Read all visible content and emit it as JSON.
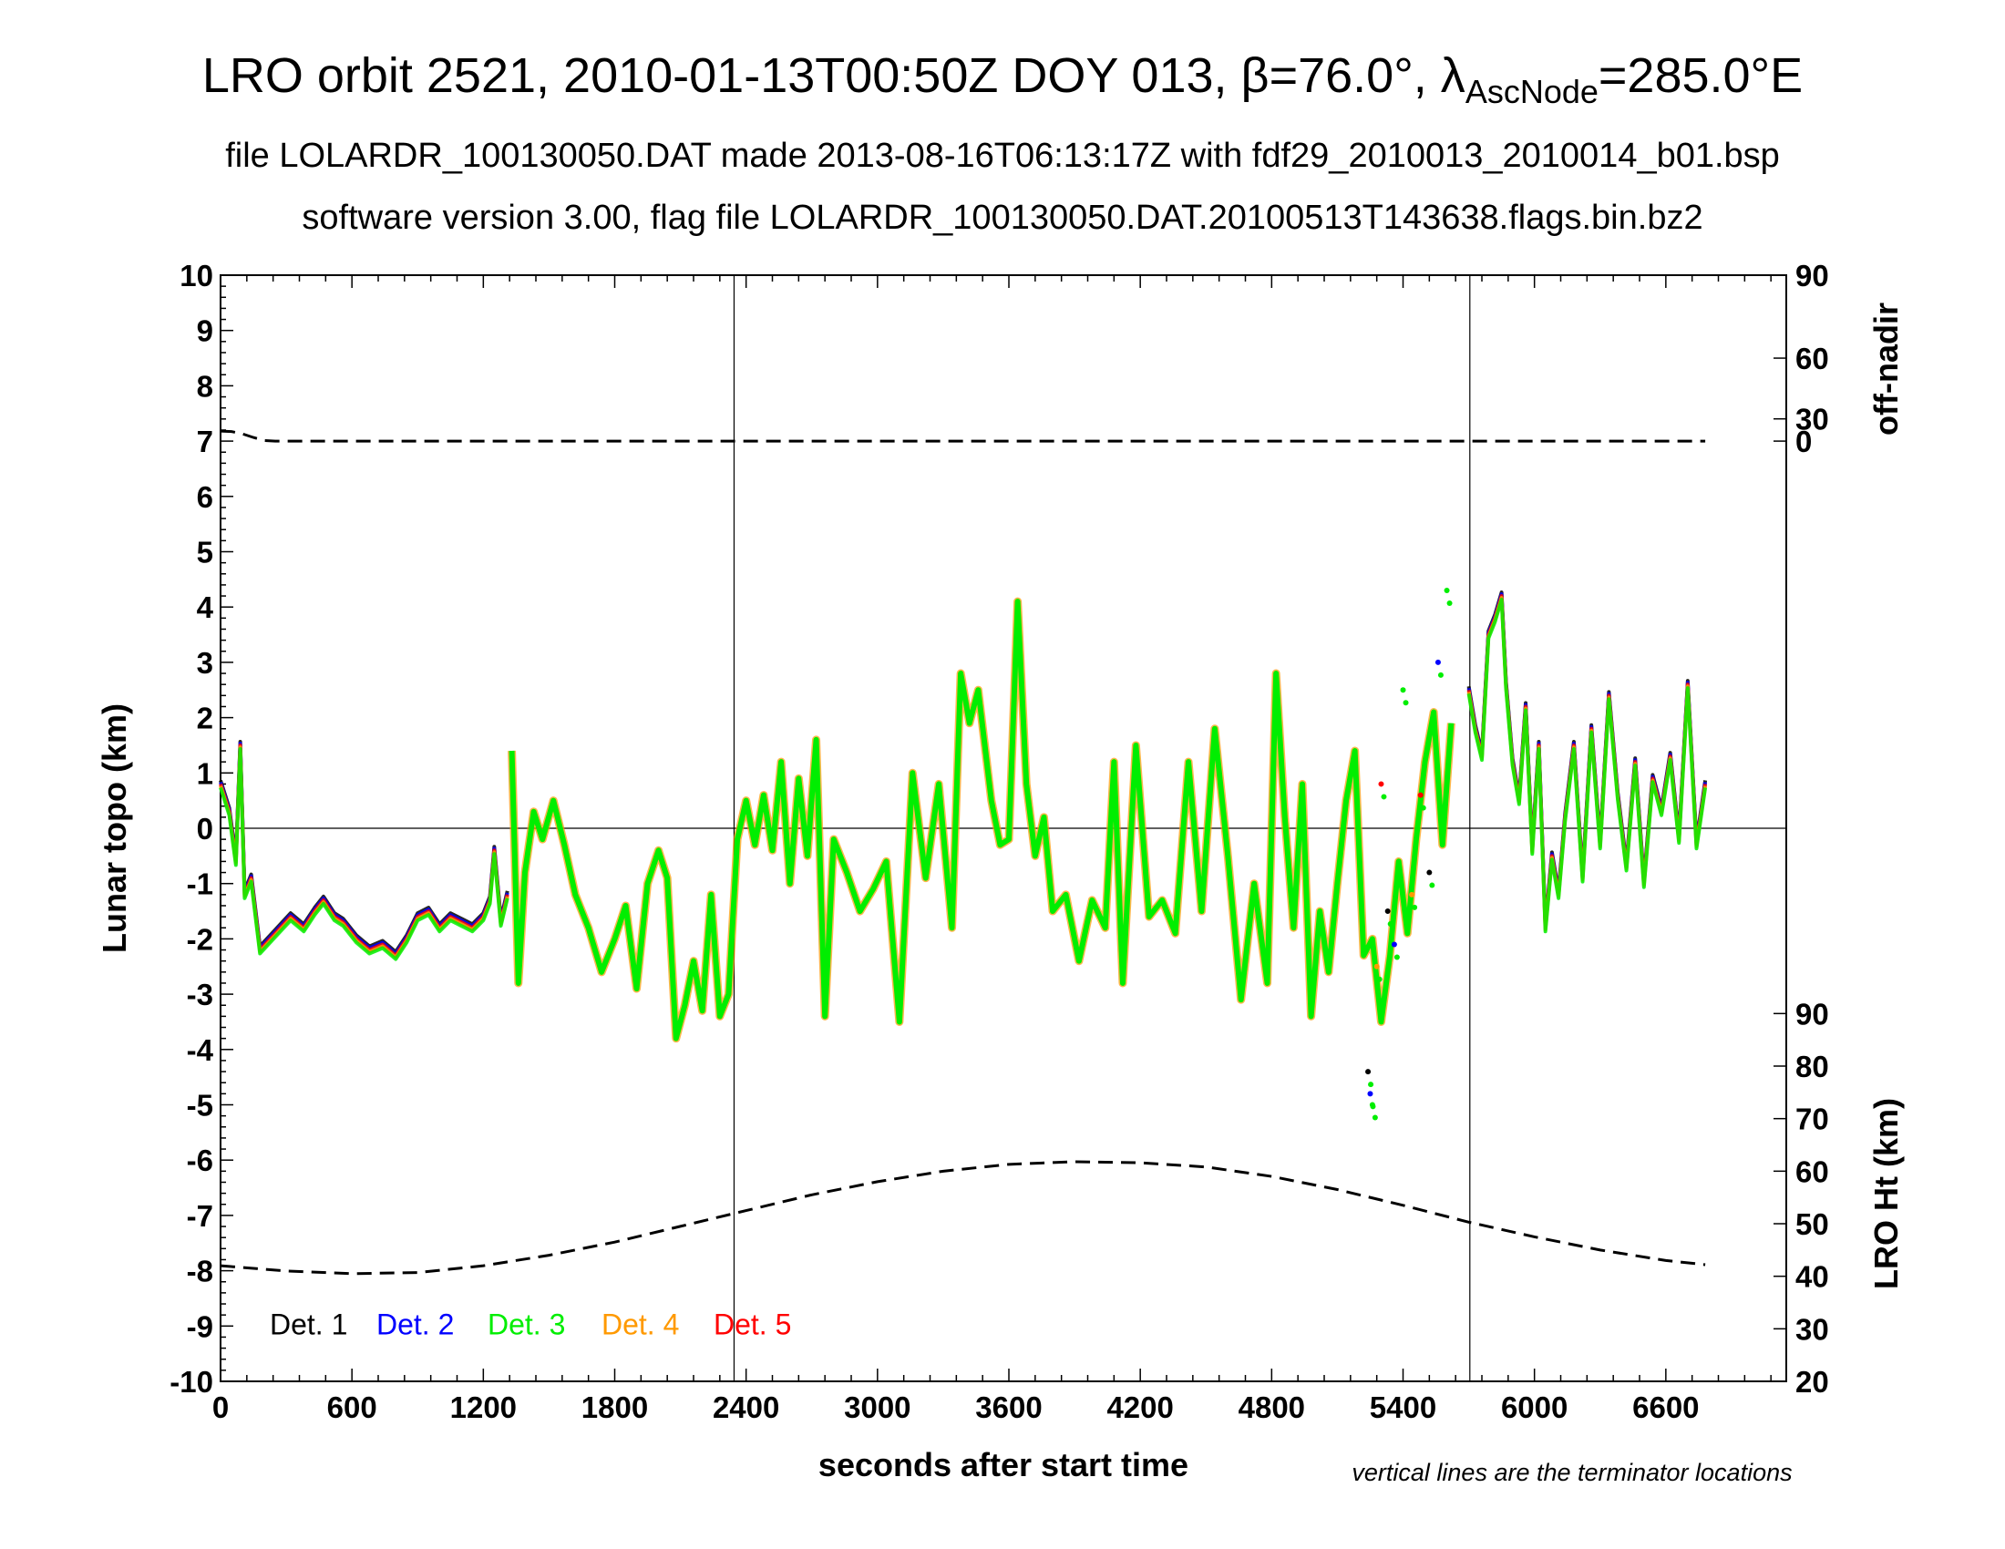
{
  "header": {
    "title_prefix": "LRO orbit 2521, 2010-01-13T00:50Z DOY 013, β=76.0°, λ",
    "title_sub": "AscNode",
    "title_suffix": "=285.0°E",
    "subtitle1": "file LOLARDR_100130050.DAT made 2013-08-16T06:13:17Z with fdf29_2010013_2010014_b01.bsp",
    "subtitle2": "software version 3.00, flag file LOLARDR_100130050.DAT.20100513T143638.flags.bin.bz2"
  },
  "chart_data": {
    "type": "scatter",
    "xlabel": "seconds after start time",
    "ylabel": "Lunar topo (km)",
    "xlim": [
      0,
      7150
    ],
    "ylim": [
      -10,
      10
    ],
    "x_ticks": [
      0,
      600,
      1200,
      1800,
      2400,
      3000,
      3600,
      4200,
      4800,
      5400,
      6000,
      6600
    ],
    "y_ticks": [
      10,
      9,
      8,
      7,
      6,
      5,
      4,
      3,
      2,
      1,
      0,
      -1,
      -2,
      -3,
      -4,
      -5,
      -6,
      -7,
      -8,
      -9,
      -10
    ],
    "right_axis_offnadir": {
      "label": "off-nadir",
      "ticks": [
        90,
        60,
        30,
        0
      ]
    },
    "right_axis_height": {
      "label": "LRO Ht (km)",
      "ticks": [
        90,
        80,
        70,
        60,
        50,
        40,
        30,
        20
      ],
      "range": [
        20,
        90
      ]
    },
    "terminator_lines_x": [
      2345,
      5705
    ],
    "zero_line_y": 0,
    "note": "vertical lines are the terminator locations",
    "legend": [
      {
        "label": "Det. 1",
        "color": "#000000"
      },
      {
        "label": "Det. 2",
        "color": "#0000ff"
      },
      {
        "label": "Det. 3",
        "color": "#00ee00"
      },
      {
        "label": "Det. 4",
        "color": "#ff9900"
      },
      {
        "label": "Det. 5",
        "color": "#ff0000"
      }
    ],
    "series": [
      {
        "detectors": "Det. 1-5 (overlapping)",
        "x": [
          0,
          40,
          70,
          90,
          110,
          140,
          180,
          250,
          320,
          380,
          430,
          470,
          520,
          560,
          620,
          680,
          740,
          800,
          850,
          900,
          950,
          1000,
          1050,
          1100,
          1150,
          1200,
          1230,
          1250,
          1280,
          1310
        ],
        "y": [
          0.8,
          0.3,
          -0.6,
          1.5,
          -1.2,
          -0.9,
          -2.2,
          -1.9,
          -1.6,
          -1.8,
          -1.5,
          -1.3,
          -1.6,
          -1.7,
          -2.0,
          -2.2,
          -2.1,
          -2.3,
          -2.0,
          -1.6,
          -1.5,
          -1.8,
          -1.6,
          -1.7,
          -1.8,
          -1.6,
          -1.3,
          -0.4,
          -1.7,
          -1.2
        ]
      },
      {
        "detectors": "Det. 3 (dominant)",
        "x": [
          1330,
          1360,
          1390,
          1430,
          1470,
          1520,
          1570,
          1620,
          1680,
          1740,
          1800,
          1850,
          1900,
          1950,
          2000,
          2040,
          2080,
          2120,
          2160,
          2200,
          2240,
          2280,
          2320,
          2360,
          2400,
          2440,
          2480,
          2520,
          2560,
          2600,
          2640,
          2680,
          2720,
          2760,
          2800,
          2860,
          2920,
          2980,
          3040,
          3100,
          3160,
          3220,
          3280,
          3340,
          3380,
          3420,
          3460,
          3520,
          3560,
          3600,
          3640,
          3680,
          3720,
          3760,
          3800,
          3860,
          3920,
          3980,
          4040,
          4080,
          4120,
          4180,
          4240,
          4300,
          4360,
          4420,
          4480,
          4540,
          4600,
          4660,
          4720,
          4780,
          4820,
          4860,
          4900,
          4940,
          4980,
          5020,
          5060,
          5100,
          5140,
          5180,
          5220,
          5260,
          5300,
          5340,
          5380,
          5420,
          5460,
          5500,
          5540,
          5580,
          5620
        ],
        "y": [
          1.4,
          -2.8,
          -0.8,
          0.3,
          -0.2,
          0.5,
          -0.3,
          -1.2,
          -1.8,
          -2.6,
          -2.0,
          -1.4,
          -2.9,
          -1.0,
          -0.4,
          -0.9,
          -3.8,
          -3.2,
          -2.4,
          -3.3,
          -1.2,
          -3.4,
          -3.0,
          -0.2,
          0.5,
          -0.3,
          0.6,
          -0.4,
          1.2,
          -1.0,
          0.9,
          -0.5,
          1.6,
          -3.4,
          -0.2,
          -0.8,
          -1.5,
          -1.1,
          -0.6,
          -3.5,
          1.0,
          -0.9,
          0.8,
          -1.8,
          2.8,
          1.9,
          2.5,
          0.5,
          -0.3,
          -0.2,
          4.1,
          0.8,
          -0.5,
          0.2,
          -1.5,
          -1.2,
          -2.4,
          -1.3,
          -1.8,
          1.2,
          -2.8,
          1.5,
          -1.6,
          -1.3,
          -1.9,
          1.2,
          -1.5,
          1.8,
          -0.5,
          -3.1,
          -1.0,
          -2.8,
          2.8,
          0.2,
          -1.8,
          0.8,
          -3.4,
          -1.5,
          -2.6,
          -1.0,
          0.5,
          1.4,
          -2.3,
          -2.0,
          -3.5,
          -2.3,
          -0.6,
          -1.9,
          -0.2,
          1.2,
          2.1,
          -0.3,
          1.9
        ]
      },
      {
        "detectors": "Det. 1-5 (overlapping)",
        "x": [
          5700,
          5730,
          5760,
          5790,
          5820,
          5850,
          5870,
          5900,
          5930,
          5960,
          5990,
          6020,
          6050,
          6080,
          6110,
          6140,
          6180,
          6220,
          6260,
          6300,
          6340,
          6380,
          6420,
          6460,
          6500,
          6540,
          6580,
          6620,
          6660,
          6700,
          6740,
          6780
        ],
        "y": [
          2.5,
          1.8,
          1.3,
          3.5,
          3.8,
          4.2,
          2.6,
          1.2,
          0.5,
          2.2,
          -0.4,
          1.5,
          -1.8,
          -0.5,
          -1.2,
          0.2,
          1.5,
          -0.9,
          1.8,
          -0.3,
          2.4,
          0.6,
          -0.7,
          1.2,
          -1.0,
          0.9,
          0.3,
          1.3,
          -0.2,
          2.6,
          -0.3,
          0.8
        ]
      },
      {
        "detectors": "Det. 1-5 (sparse)",
        "x": [
          5240,
          5250,
          5260,
          5280,
          5300,
          5330,
          5360,
          5400,
          5440,
          5480,
          5520,
          5560,
          5600
        ],
        "y": [
          -4.4,
          -4.8,
          -5.0,
          -2.5,
          0.8,
          -1.5,
          -2.1,
          2.5,
          -1.2,
          0.6,
          -0.8,
          3.0,
          4.3
        ]
      }
    ],
    "off_nadir_trace": {
      "x": [
        0,
        50,
        100,
        150,
        200,
        250,
        300,
        400,
        1000,
        2000,
        3000,
        4000,
        5000,
        6000,
        6780
      ],
      "angle_deg": [
        20,
        19.5,
        17,
        12,
        5,
        0.6,
        0.6,
        0.6,
        0.6,
        0.6,
        0.6,
        0.6,
        0.6,
        0.6,
        0.6
      ]
    },
    "height_trace": {
      "x": [
        0,
        300,
        600,
        900,
        1200,
        1500,
        1800,
        2100,
        2400,
        2700,
        3000,
        3300,
        3600,
        3900,
        4200,
        4500,
        4800,
        5100,
        5400,
        5700,
        6000,
        6300,
        6600,
        6780
      ],
      "height_km": [
        42.0,
        41.0,
        40.5,
        40.7,
        42.0,
        44.0,
        46.5,
        49.5,
        52.5,
        55.5,
        58.0,
        60.0,
        61.3,
        61.8,
        61.6,
        60.8,
        59.0,
        56.5,
        53.5,
        50.3,
        47.5,
        45.0,
        43.0,
        42.2
      ]
    }
  }
}
